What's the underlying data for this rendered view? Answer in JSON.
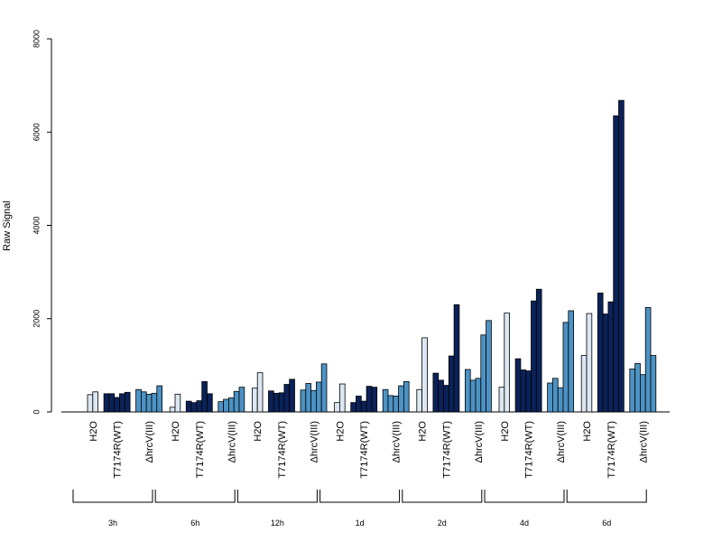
{
  "chart_data": {
    "type": "bar",
    "ylabel": "Raw Signal",
    "ylim": [
      0,
      8000
    ],
    "yticks": [
      0,
      2000,
      4000,
      6000,
      8000
    ],
    "conditions": [
      "H2O",
      "T7174R(WT)",
      "ΔhrcV(III)"
    ],
    "timepoints": [
      "3h",
      "6h",
      "12h",
      "1d",
      "2d",
      "4d",
      "6d"
    ],
    "colors": {
      "H2O": "#dbe7f3",
      "T7174R(WT)": "#0b2259",
      "ΔhrcV(III)": "#4d92c4"
    },
    "groups": [
      {
        "time": "3h",
        "H2O": [
          370,
          430
        ],
        "T7174R(WT)": [
          390,
          390,
          310,
          390,
          420
        ],
        "ΔhrcV(III)": [
          480,
          430,
          380,
          400,
          560
        ]
      },
      {
        "time": "6h",
        "H2O": [
          100,
          380
        ],
        "T7174R(WT)": [
          230,
          200,
          240,
          650,
          390
        ],
        "ΔhrcV(III)": [
          220,
          270,
          300,
          440,
          530
        ]
      },
      {
        "time": "12h",
        "H2O": [
          510,
          840
        ],
        "T7174R(WT)": [
          450,
          400,
          410,
          590,
          700
        ],
        "ΔhrcV(III)": [
          470,
          610,
          460,
          640,
          1030
        ]
      },
      {
        "time": "1d",
        "H2O": [
          200,
          600
        ],
        "T7174R(WT)": [
          200,
          340,
          230,
          550,
          530
        ],
        "ΔhrcV(III)": [
          480,
          350,
          340,
          560,
          650
        ]
      },
      {
        "time": "2d",
        "H2O": [
          480,
          1590
        ],
        "T7174R(WT)": [
          830,
          680,
          570,
          1200,
          2300
        ],
        "ΔhrcV(III)": [
          910,
          680,
          720,
          1650,
          1960
        ]
      },
      {
        "time": "4d",
        "H2O": [
          530,
          2120
        ],
        "T7174R(WT)": [
          1140,
          900,
          880,
          2380,
          2630
        ],
        "ΔhrcV(III)": [
          620,
          720,
          520,
          1920,
          2170
        ]
      },
      {
        "time": "6d",
        "H2O": [
          1210,
          2110
        ],
        "T7174R(WT)": [
          2550,
          2100,
          2360,
          6350,
          6680
        ],
        "ΔhrcV(III)": [
          920,
          1040,
          800,
          2240,
          1210
        ]
      }
    ]
  }
}
